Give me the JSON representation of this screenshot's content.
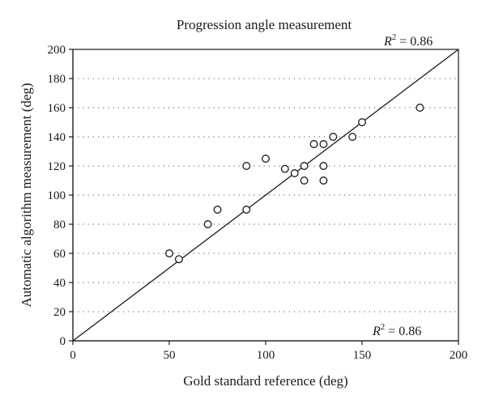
{
  "chart_data": {
    "type": "scatter",
    "title": "Progression angle measurement",
    "xlabel": "Gold standard reference (deg)",
    "ylabel": "Automatic algorithm measurement (deg)",
    "xlim": [
      0,
      200
    ],
    "ylim": [
      0,
      200
    ],
    "xticks": [
      0,
      50,
      100,
      150,
      200
    ],
    "yticks": [
      0,
      20,
      40,
      60,
      80,
      100,
      120,
      140,
      160,
      180,
      200
    ],
    "grid": "horizontal dotted",
    "fit_line": {
      "from": [
        0,
        0
      ],
      "to": [
        200,
        200
      ]
    },
    "annotations": [
      {
        "label": "R",
        "sup": "2",
        "text": " = 0.86",
        "position": "top-right"
      },
      {
        "label": "R",
        "sup": "2",
        "text": " = 0.86",
        "position": "bottom-right"
      }
    ],
    "points": [
      {
        "x": 50,
        "y": 60
      },
      {
        "x": 55,
        "y": 56
      },
      {
        "x": 70,
        "y": 80
      },
      {
        "x": 75,
        "y": 90
      },
      {
        "x": 90,
        "y": 120
      },
      {
        "x": 90,
        "y": 90
      },
      {
        "x": 100,
        "y": 125
      },
      {
        "x": 110,
        "y": 118
      },
      {
        "x": 115,
        "y": 115
      },
      {
        "x": 120,
        "y": 120
      },
      {
        "x": 120,
        "y": 110
      },
      {
        "x": 125,
        "y": 135
      },
      {
        "x": 130,
        "y": 135
      },
      {
        "x": 130,
        "y": 120
      },
      {
        "x": 130,
        "y": 110
      },
      {
        "x": 135,
        "y": 140
      },
      {
        "x": 145,
        "y": 140
      },
      {
        "x": 150,
        "y": 150
      },
      {
        "x": 180,
        "y": 160
      }
    ]
  }
}
